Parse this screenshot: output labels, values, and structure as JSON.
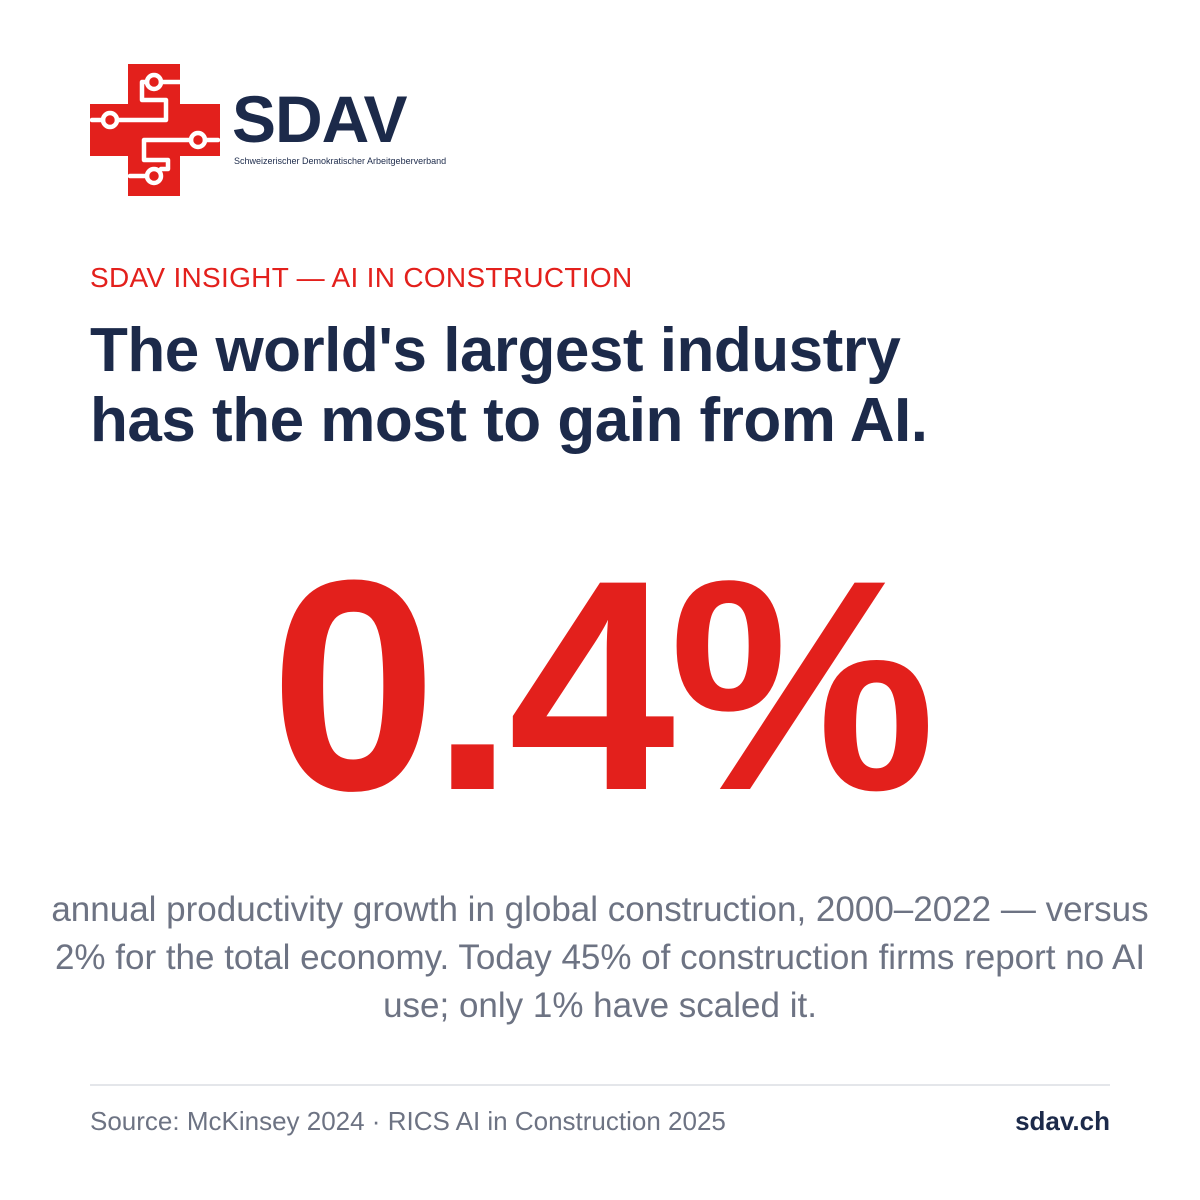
{
  "brand": {
    "name": "SDAV",
    "tagline": "Schweizerischer Demokratischer Arbeitgeberverband",
    "logo_icon": "swiss-cross-circuit-icon",
    "primary_color": "#e3201c",
    "navy_color": "#1c2a4a"
  },
  "eyebrow": "SDAV INSIGHT — AI IN CONSTRUCTION",
  "headline": {
    "line1": "The world's largest industry",
    "line2": "has the most to gain from AI."
  },
  "stat": {
    "value": "0.4%"
  },
  "description": "annual productivity growth in global construction, 2000–2022 — versus 2% for the total economy. Today 45% of construction firms report no AI use; only 1% have scaled it.",
  "footer": {
    "source": "Source: McKinsey 2024 · RICS AI in Construction 2025",
    "site": "sdav.ch"
  }
}
